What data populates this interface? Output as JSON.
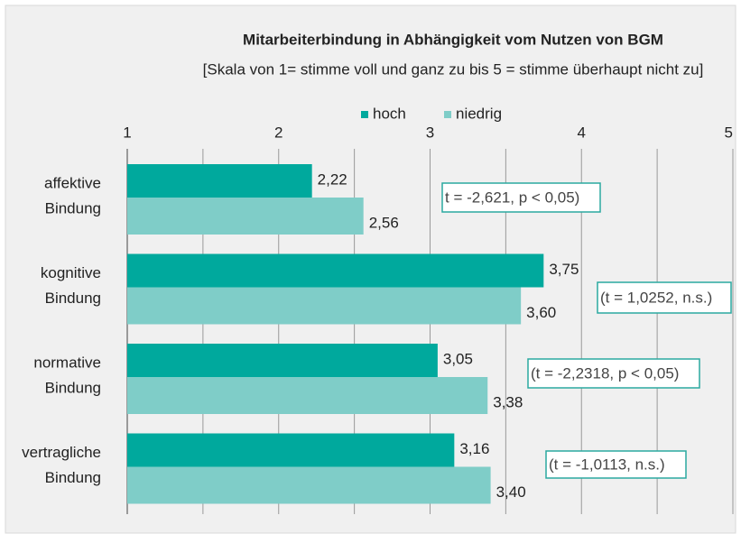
{
  "chart_data": {
    "type": "hbar",
    "title": "Mitarbeiterbindung in Abhängigkeit vom Nutzen von BGM",
    "subtitle": "[Skala von 1= stimme voll und ganz zu bis 5 = stimme überhaupt nicht zu]",
    "categories": [
      "affektive Bindung",
      "kognitive Bindung",
      "normative Bindung",
      "vertragliche Bindung"
    ],
    "series": [
      {
        "name": "hoch",
        "color": "#00a99d",
        "values": [
          2.22,
          3.75,
          3.05,
          3.16
        ],
        "value_labels": [
          "2,22",
          "3,75",
          "3,05",
          "3,16"
        ]
      },
      {
        "name": "niedrig",
        "color": "#7fcdc8",
        "values": [
          2.56,
          3.6,
          3.38,
          3.4
        ],
        "value_labels": [
          "2,56",
          "3,60",
          "3,38",
          "3,40"
        ]
      }
    ],
    "annotations": [
      "t = -2,621, p < 0,05)",
      "(t = 1,0252, n.s.)",
      "(t = -2,2318, p < 0,05)",
      "(t = -1,0113, n.s.)"
    ],
    "xlim": [
      1,
      5
    ],
    "xticks": [
      1,
      2,
      3,
      4,
      5
    ],
    "minor_xticks": [
      1.5,
      2.5,
      3.5,
      4.5
    ],
    "grid": true,
    "legend": "top"
  }
}
